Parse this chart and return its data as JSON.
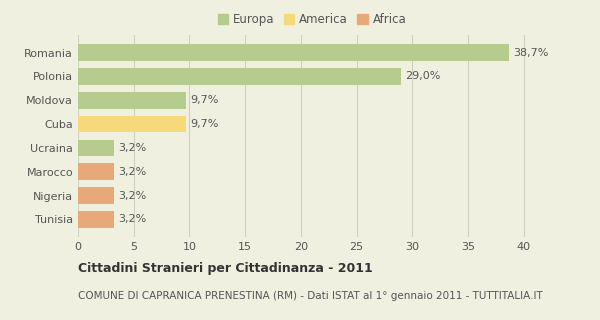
{
  "categories": [
    "Romania",
    "Polonia",
    "Moldova",
    "Cuba",
    "Ucraina",
    "Marocco",
    "Nigeria",
    "Tunisia"
  ],
  "values": [
    38.7,
    29.0,
    9.7,
    9.7,
    3.2,
    3.2,
    3.2,
    3.2
  ],
  "labels": [
    "38,7%",
    "29,0%",
    "9,7%",
    "9,7%",
    "3,2%",
    "3,2%",
    "3,2%",
    "3,2%"
  ],
  "colors": [
    "#b5cc8e",
    "#b5cc8e",
    "#b5cc8e",
    "#f5d97a",
    "#b5cc8e",
    "#e8a97a",
    "#e8a97a",
    "#e8a97a"
  ],
  "legend": [
    {
      "label": "Europa",
      "color": "#b5cc8e"
    },
    {
      "label": "America",
      "color": "#f5d97a"
    },
    {
      "label": "Africa",
      "color": "#e8a97a"
    }
  ],
  "xlim": [
    0,
    42
  ],
  "xticks": [
    0,
    5,
    10,
    15,
    20,
    25,
    30,
    35,
    40
  ],
  "title": "Cittadini Stranieri per Cittadinanza - 2011",
  "subtitle": "COMUNE DI CAPRANICA PRENESTINA (RM) - Dati ISTAT al 1° gennaio 2011 - TUTTITALIA.IT",
  "background_color": "#f0f0e0",
  "bar_height": 0.7,
  "title_fontsize": 9,
  "subtitle_fontsize": 7.5,
  "label_fontsize": 8,
  "ytick_fontsize": 8,
  "xtick_fontsize": 8
}
